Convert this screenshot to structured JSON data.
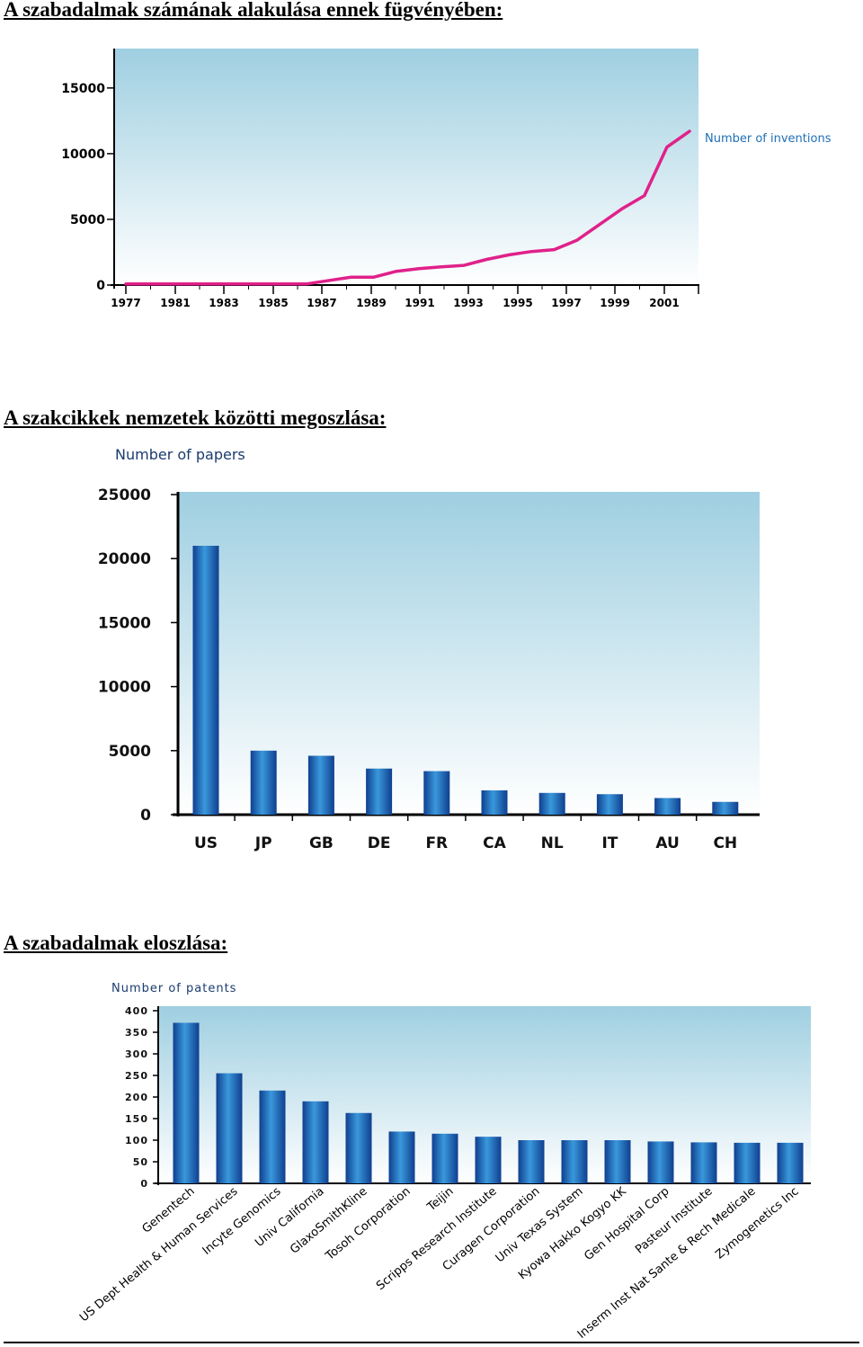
{
  "sections": [
    {
      "heading": "A szabadalmak számának alakulása ennek fügvényében:"
    },
    {
      "heading": "A szakcikkek nemzetek közötti megoszlása:"
    },
    {
      "heading": "A szabadalmak eloszlása:"
    }
  ],
  "chart_data": [
    {
      "type": "line",
      "title": "",
      "series": [
        {
          "name": "Number of inventions",
          "x": [
            1977,
            1979,
            1981,
            1983,
            1985,
            1987,
            1988,
            1989,
            1990,
            1991,
            1992,
            1993,
            1994,
            1995,
            1996,
            1997,
            1998,
            1999,
            2000,
            2001,
            2002
          ],
          "y": [
            80,
            80,
            80,
            80,
            80,
            600,
            600,
            1050,
            1250,
            1380,
            1500,
            1950,
            2300,
            2550,
            2700,
            3400,
            4600,
            5800,
            6800,
            10500,
            11700
          ]
        }
      ],
      "xticks": [
        "1977",
        "1981",
        "1983",
        "1985",
        "1987",
        "1989",
        "1991",
        "1993",
        "1995",
        "1997",
        "1999",
        "2001"
      ],
      "yticks": [
        "0",
        "5000",
        "10000",
        "15000"
      ],
      "xlim": [
        1977,
        2002
      ],
      "ylim": [
        0,
        18000
      ],
      "grid": false,
      "legend_position": "right",
      "colors": {
        "line": "#e0218a",
        "bg_top": "#9fcfe1",
        "bg_bottom": "#ffffff"
      }
    },
    {
      "type": "bar",
      "title": "Number of papers",
      "categories": [
        "US",
        "JP",
        "GB",
        "DE",
        "FR",
        "CA",
        "NL",
        "IT",
        "AU",
        "CH"
      ],
      "values": [
        21000,
        5000,
        4600,
        3600,
        3400,
        1900,
        1700,
        1600,
        1300,
        1000
      ],
      "yticks": [
        "0",
        "5000",
        "10000",
        "15000",
        "20000",
        "25000"
      ],
      "ylim": [
        0,
        25000
      ],
      "grid": false,
      "colors": {
        "bar_edge": "#0f3f8f",
        "bar_mid": "#3a98dc",
        "bg_top": "#9fcfe1",
        "bg_bottom": "#ffffff"
      }
    },
    {
      "type": "bar",
      "title": "Number of patents",
      "categories": [
        "Genentech",
        "US Dept Health & Human Services",
        "Incyte Genomics",
        "Univ California",
        "GlaxoSmithKline",
        "Tosoh Corporation",
        "Teijin",
        "Scripps Research Institute",
        "Curagen Corporation",
        "Univ Texas System",
        "Kyowa Hakko Kogyo KK",
        "Gen Hospital Corp",
        "Pasteur Institute",
        "Inserm Inst Nat Sante & Rech Medicale",
        "Zymogenetics Inc"
      ],
      "values": [
        372,
        255,
        215,
        190,
        163,
        120,
        115,
        108,
        100,
        100,
        100,
        97,
        95,
        94,
        94
      ],
      "yticks": [
        "0",
        "50",
        "100",
        "150",
        "200",
        "250",
        "300",
        "350",
        "400"
      ],
      "ylim": [
        0,
        400
      ],
      "grid": false,
      "colors": {
        "bar_edge": "#0f3f8f",
        "bar_mid": "#3a98dc",
        "bg_top": "#9fcfe1",
        "bg_bottom": "#ffffff"
      }
    }
  ]
}
